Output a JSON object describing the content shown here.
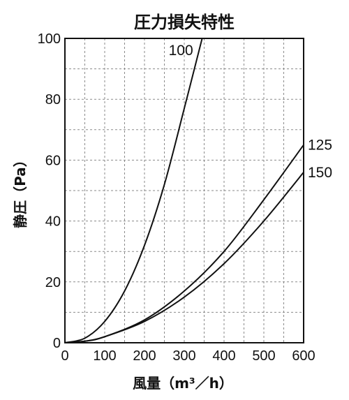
{
  "chart_data": {
    "type": "line",
    "title": "圧力損失特性",
    "xlabel": "風量（m³／h）",
    "ylabel": "静圧（Pa）",
    "xlim": [
      0,
      600
    ],
    "ylim": [
      0,
      100
    ],
    "x_ticks": [
      "0",
      "100",
      "200",
      "300",
      "400",
      "500",
      "600"
    ],
    "y_ticks": [
      "0",
      "20",
      "40",
      "60",
      "80",
      "100"
    ],
    "grid": true,
    "series": [
      {
        "name": "100",
        "x": [
          0,
          50,
          100,
          150,
          200,
          250,
          300,
          345
        ],
        "y": [
          0,
          1.5,
          7,
          17,
          32,
          52,
          77,
          100
        ]
      },
      {
        "name": "125",
        "x": [
          0,
          50,
          100,
          200,
          300,
          400,
          500,
          600
        ],
        "y": [
          0,
          0.5,
          2,
          7.5,
          17,
          30,
          47,
          65
        ]
      },
      {
        "name": "150",
        "x": [
          0,
          50,
          100,
          200,
          300,
          400,
          500,
          600
        ],
        "y": [
          0,
          0.5,
          2,
          7,
          15,
          26,
          40,
          56
        ]
      }
    ]
  }
}
